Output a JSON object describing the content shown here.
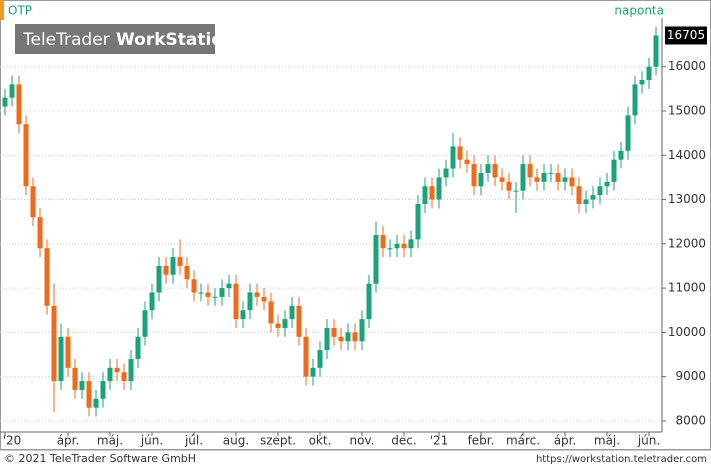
{
  "chart_data": {
    "type": "candlestick",
    "symbol": "OTP",
    "period": "naponta",
    "watermark_brand": "TeleTrader",
    "watermark_product": "WorkStation",
    "footer_left": "© 2021 TeleTrader Software GmbH",
    "footer_right": "https://workstation.teletrader.com",
    "last_value": 16705,
    "up_color": "#1aa37a",
    "down_color": "#f06a1a",
    "grid": true,
    "categories": [
      "'20",
      null,
      null,
      null,
      null,
      null,
      null,
      null,
      null,
      "ápr.",
      null,
      null,
      null,
      null,
      null,
      "máj.",
      null,
      null,
      null,
      null,
      null,
      "jún.",
      null,
      null,
      null,
      null,
      null,
      "júl.",
      null,
      null,
      null,
      null,
      null,
      "aug.",
      null,
      null,
      null,
      null,
      null,
      "szept.",
      null,
      null,
      null,
      null,
      null,
      "okt.",
      null,
      null,
      null,
      null,
      null,
      "nov.",
      null,
      null,
      null,
      null,
      null,
      "dec.",
      null,
      null,
      null,
      null,
      "'21",
      null,
      null,
      null,
      null,
      null,
      "febr.",
      null,
      null,
      null,
      null,
      null,
      "márc.",
      null,
      null,
      null,
      null,
      null,
      "ápr.",
      null,
      null,
      null,
      null,
      null,
      "máj.",
      null,
      null,
      null,
      null,
      null,
      "jún.",
      null
    ],
    "open": [
      15100,
      15300,
      15600,
      14700,
      13300,
      12600,
      11900,
      10600,
      8900,
      9900,
      9200,
      8700,
      8900,
      8300,
      8500,
      8900,
      9200,
      9100,
      8900,
      9400,
      9900,
      10500,
      10900,
      11500,
      11300,
      11700,
      11500,
      11200,
      10900,
      10900,
      10800,
      10800,
      11000,
      11100,
      10300,
      10500,
      10900,
      10800,
      10700,
      10200,
      10100,
      10300,
      10600,
      9900,
      9000,
      9200,
      9600,
      10100,
      9900,
      9800,
      10000,
      9800,
      10300,
      11100,
      12200,
      11900,
      11900,
      12000,
      11900,
      12100,
      12900,
      13300,
      13000,
      13500,
      13700,
      14200,
      13900,
      13800,
      13300,
      13600,
      13800,
      13500,
      13400,
      13200,
      13200,
      13800,
      13500,
      13400,
      13600,
      13600,
      13400,
      13500,
      13300,
      12900,
      13000,
      13100,
      13300,
      13400,
      13900,
      14100,
      14900,
      15600,
      15700,
      16000
    ],
    "high": [
      15500,
      15800,
      15800,
      14900,
      13500,
      12800,
      12100,
      11100,
      10200,
      10100,
      9400,
      9100,
      9100,
      8700,
      9100,
      9400,
      9400,
      9300,
      9600,
      10100,
      10700,
      11100,
      11700,
      11700,
      11900,
      12100,
      11700,
      11400,
      11100,
      11100,
      11000,
      11200,
      11300,
      11300,
      10700,
      11100,
      11100,
      11000,
      10900,
      10400,
      10500,
      10800,
      10800,
      10100,
      9400,
      9800,
      10300,
      10300,
      10100,
      10200,
      10200,
      10500,
      11300,
      12500,
      12400,
      12100,
      12200,
      12200,
      12300,
      13100,
      13500,
      13500,
      13700,
      13900,
      14500,
      14400,
      14100,
      14000,
      13800,
      14000,
      14000,
      13700,
      13600,
      13400,
      14000,
      14000,
      13700,
      13800,
      13800,
      13800,
      13700,
      13700,
      13500,
      13200,
      13300,
      13500,
      13600,
      14100,
      14300,
      15100,
      15800,
      15900,
      16200,
      16900
    ],
    "low": [
      14900,
      15100,
      14500,
      13100,
      12400,
      11700,
      10400,
      8200,
      8700,
      9000,
      8500,
      8500,
      8100,
      8100,
      8300,
      8700,
      8900,
      8700,
      8700,
      9200,
      9700,
      10300,
      10700,
      11100,
      11100,
      11300,
      11000,
      10700,
      10700,
      10600,
      10600,
      10600,
      10800,
      10100,
      10100,
      10300,
      10600,
      10500,
      10000,
      9900,
      9900,
      10100,
      9700,
      8800,
      8800,
      9000,
      9400,
      9700,
      9600,
      9600,
      9600,
      9600,
      10100,
      10900,
      11700,
      11700,
      11700,
      11700,
      11700,
      11900,
      12700,
      12800,
      12800,
      13300,
      13500,
      13700,
      13600,
      13100,
      13100,
      13400,
      13300,
      13200,
      13000,
      12700,
      13000,
      13300,
      13200,
      13200,
      13400,
      13200,
      13200,
      13100,
      12700,
      12700,
      12800,
      12900,
      13100,
      13200,
      13700,
      13900,
      14700,
      15400,
      15500,
      15800
    ],
    "close": [
      15300,
      15600,
      14700,
      13300,
      12600,
      11900,
      10600,
      8900,
      9900,
      9200,
      8700,
      8900,
      8300,
      8500,
      8900,
      9200,
      9100,
      8900,
      9400,
      9900,
      10500,
      10900,
      11500,
      11300,
      11700,
      11500,
      11200,
      10900,
      10900,
      10800,
      10800,
      11000,
      11100,
      10300,
      10500,
      10900,
      10800,
      10700,
      10200,
      10100,
      10300,
      10600,
      9900,
      9000,
      9200,
      9600,
      10100,
      9900,
      9800,
      10000,
      9800,
      10300,
      11100,
      12200,
      11900,
      11900,
      12000,
      11900,
      12100,
      12900,
      13300,
      13000,
      13500,
      13700,
      14200,
      13900,
      13800,
      13300,
      13600,
      13800,
      13500,
      13400,
      13200,
      13200,
      13800,
      13500,
      13400,
      13600,
      13600,
      13400,
      13500,
      13300,
      12900,
      13000,
      13100,
      13300,
      13400,
      13900,
      14100,
      14900,
      15600,
      15700,
      16000,
      16705
    ],
    "ylim": [
      7750,
      17100
    ],
    "yticks": [
      8000,
      9000,
      10000,
      11000,
      12000,
      13000,
      14000,
      15000,
      16000
    ]
  }
}
